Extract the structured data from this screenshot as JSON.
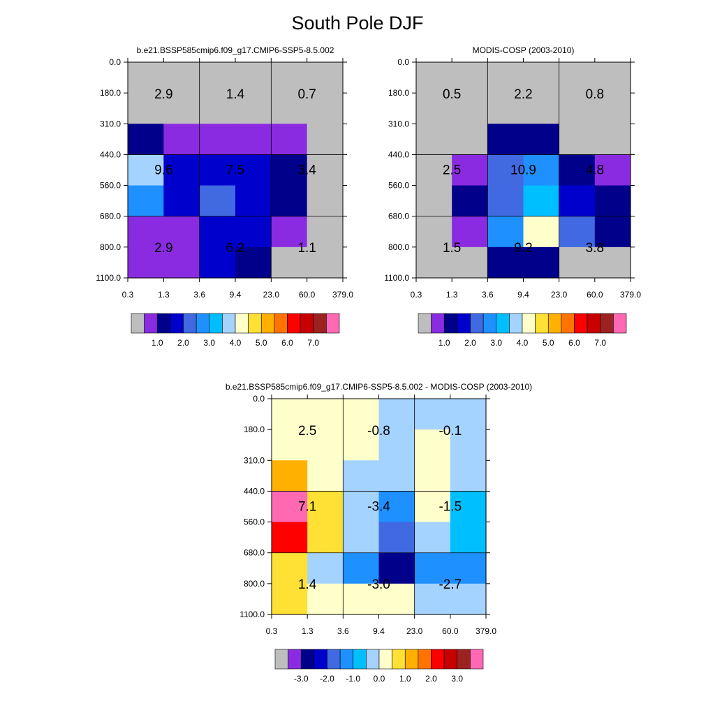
{
  "title": "South Pole DJF",
  "palettes": {
    "abs": [
      "#bebebe",
      "#8a2be2",
      "#00008b",
      "#0000cd",
      "#4169e1",
      "#1e90ff",
      "#00bfff",
      "#a4d3ff",
      "#ffffcc",
      "#ffe135",
      "#ffb000",
      "#ff7400",
      "#ff0000",
      "#c80000",
      "#9c2222",
      "#ff69b4"
    ],
    "diff": [
      "#bebebe",
      "#8a2be2",
      "#00008b",
      "#0000cd",
      "#4169e1",
      "#1e90ff",
      "#00bfff",
      "#a4d3ff",
      "#ffffcc",
      "#ffe135",
      "#ffb000",
      "#ff7400",
      "#ff0000",
      "#c80000",
      "#9c2222",
      "#ff69b4"
    ]
  },
  "chart_data": [
    {
      "type": "heatmap",
      "title": "b.e21.BSSP585cmip6.f09_g17.CMIP6-SSP5-8.5.002",
      "x_ticks": [
        "0.3",
        "1.3",
        "3.6",
        "9.4",
        "23.0",
        "60.0",
        "379.0"
      ],
      "y_ticks": [
        "0.0",
        "180.0",
        "310.0",
        "440.0",
        "560.0",
        "680.0",
        "800.0",
        "1100.0"
      ],
      "cells": [
        [
          0,
          0,
          0,
          0,
          0,
          0
        ],
        [
          0,
          0,
          0,
          0,
          0,
          0
        ],
        [
          2,
          1,
          1,
          1,
          1,
          0
        ],
        [
          7,
          3,
          3,
          3,
          2,
          0
        ],
        [
          5,
          3,
          4,
          3,
          2,
          0
        ],
        [
          1,
          1,
          3,
          3,
          1,
          0
        ],
        [
          1,
          1,
          3,
          2,
          0,
          0
        ]
      ],
      "block_labels": [
        {
          "col": 0,
          "row": 0,
          "text": "2.9"
        },
        {
          "col": 1,
          "row": 0,
          "text": "1.4"
        },
        {
          "col": 2,
          "row": 0,
          "text": "0.7"
        },
        {
          "col": 0,
          "row": 1,
          "text": "9.6"
        },
        {
          "col": 1,
          "row": 1,
          "text": "7.5"
        },
        {
          "col": 2,
          "row": 1,
          "text": "3.4"
        },
        {
          "col": 0,
          "row": 2,
          "text": "2.9"
        },
        {
          "col": 1,
          "row": 2,
          "text": "6.2"
        },
        {
          "col": 2,
          "row": 2,
          "text": "1.1"
        }
      ],
      "colorbar": {
        "palette": "abs",
        "labels": [
          "1.0",
          "2.0",
          "3.0",
          "4.0",
          "5.0",
          "6.0",
          "7.0"
        ]
      }
    },
    {
      "type": "heatmap",
      "title": "MODIS-COSP (2003-2010)",
      "x_ticks": [
        "0.3",
        "1.3",
        "3.6",
        "9.4",
        "23.0",
        "60.0",
        "379.0"
      ],
      "y_ticks": [
        "0.0",
        "180.0",
        "310.0",
        "440.0",
        "560.0",
        "680.0",
        "800.0",
        "1100.0"
      ],
      "cells": [
        [
          0,
          0,
          0,
          0,
          0,
          0
        ],
        [
          0,
          0,
          0,
          0,
          0,
          0
        ],
        [
          0,
          0,
          2,
          2,
          0,
          0
        ],
        [
          0,
          1,
          4,
          5,
          2,
          1
        ],
        [
          0,
          2,
          4,
          6,
          3,
          2
        ],
        [
          0,
          1,
          5,
          8,
          4,
          2
        ],
        [
          0,
          0,
          2,
          2,
          0,
          0
        ]
      ],
      "block_labels": [
        {
          "col": 0,
          "row": 0,
          "text": "0.5"
        },
        {
          "col": 1,
          "row": 0,
          "text": "2.2"
        },
        {
          "col": 2,
          "row": 0,
          "text": "0.8"
        },
        {
          "col": 0,
          "row": 1,
          "text": "2.5"
        },
        {
          "col": 1,
          "row": 1,
          "text": "10.9"
        },
        {
          "col": 2,
          "row": 1,
          "text": "4.8"
        },
        {
          "col": 0,
          "row": 2,
          "text": "1.5"
        },
        {
          "col": 1,
          "row": 2,
          "text": "9.2"
        },
        {
          "col": 2,
          "row": 2,
          "text": "3.8"
        }
      ],
      "colorbar": {
        "palette": "abs",
        "labels": [
          "1.0",
          "2.0",
          "3.0",
          "4.0",
          "5.0",
          "6.0",
          "7.0"
        ]
      }
    },
    {
      "type": "heatmap",
      "title": "b.e21.BSSP585cmip6.f09_g17.CMIP6-SSP5-8.5.002 - MODIS-COSP (2003-2010)",
      "x_ticks": [
        "0.3",
        "1.3",
        "3.6",
        "9.4",
        "23.0",
        "60.0",
        "379.0"
      ],
      "y_ticks": [
        "0.0",
        "180.0",
        "310.0",
        "440.0",
        "560.0",
        "680.0",
        "800.0",
        "1100.0"
      ],
      "cells": [
        [
          8,
          8,
          8,
          7,
          7,
          7
        ],
        [
          8,
          8,
          8,
          7,
          8,
          7
        ],
        [
          10,
          8,
          7,
          7,
          8,
          7
        ],
        [
          15,
          9,
          7,
          5,
          8,
          6
        ],
        [
          12,
          9,
          7,
          4,
          7,
          6
        ],
        [
          9,
          7,
          5,
          2,
          5,
          5
        ],
        [
          9,
          8,
          8,
          8,
          7,
          7
        ]
      ],
      "block_labels": [
        {
          "col": 0,
          "row": 0,
          "text": "2.5"
        },
        {
          "col": 1,
          "row": 0,
          "text": "-0.8"
        },
        {
          "col": 2,
          "row": 0,
          "text": "-0.1"
        },
        {
          "col": 0,
          "row": 1,
          "text": "7.1"
        },
        {
          "col": 1,
          "row": 1,
          "text": "-3.4"
        },
        {
          "col": 2,
          "row": 1,
          "text": "-1.5"
        },
        {
          "col": 0,
          "row": 2,
          "text": "1.4"
        },
        {
          "col": 1,
          "row": 2,
          "text": "-3.0"
        },
        {
          "col": 2,
          "row": 2,
          "text": "-2.7"
        }
      ],
      "colorbar": {
        "palette": "diff",
        "labels": [
          "-3.0",
          "-2.0",
          "-1.0",
          "0.0",
          "1.0",
          "2.0",
          "3.0"
        ]
      }
    }
  ]
}
